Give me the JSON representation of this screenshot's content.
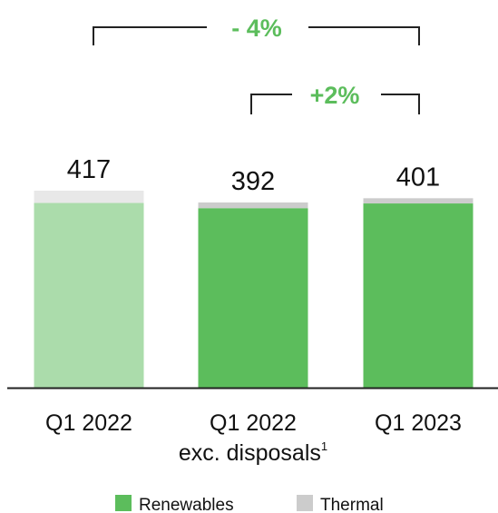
{
  "chart_data": {
    "type": "bar",
    "stacked": true,
    "categories": [
      "Q1 2022",
      "Q1 2022 exc. disposals",
      "Q1 2023"
    ],
    "category_labels": [
      {
        "line1": "Q1 2022",
        "line2": ""
      },
      {
        "line1": "Q1 2022",
        "line2": "exc. disposals",
        "footnote": "1"
      },
      {
        "line1": "Q1 2023",
        "line2": ""
      }
    ],
    "totals": [
      417,
      392,
      401
    ],
    "series": [
      {
        "name": "Renewables",
        "values": [
          391,
          380,
          390
        ],
        "color": "#5cbd5c",
        "first_bar_color": "#abdcab"
      },
      {
        "name": "Thermal",
        "values": [
          26,
          12,
          11
        ],
        "color": "#cccccc",
        "first_bar_color": "#e8e8e8"
      }
    ],
    "ylim": [
      0,
      420
    ],
    "grid": false,
    "legend_position": "bottom",
    "comparisons": [
      {
        "label": "- 4%",
        "from": 0,
        "to": 2
      },
      {
        "label": "+2%",
        "from": 1,
        "to": 2
      }
    ],
    "colors": {
      "accent": "#5cbd5c",
      "axis": "#222222"
    }
  }
}
